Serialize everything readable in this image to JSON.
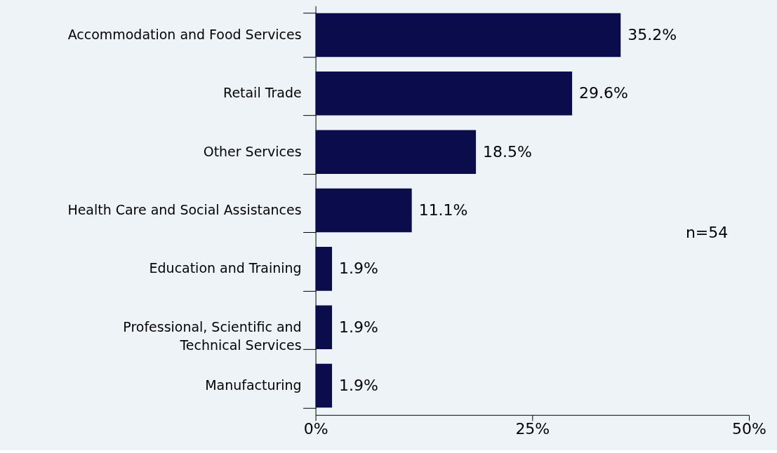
{
  "chart_data": {
    "type": "bar",
    "orientation": "horizontal",
    "categories": [
      "Accommodation and Food Services",
      "Retail Trade",
      "Other Services",
      "Health Care and Social Assistances",
      "Education and Training",
      "Professional, Scientific and Technical Services",
      "Manufacturing"
    ],
    "values": [
      35.2,
      29.6,
      18.5,
      11.1,
      1.9,
      1.9,
      1.9
    ],
    "value_labels": [
      "35.2%",
      "29.6%",
      "18.5%",
      "11.1%",
      "1.9%",
      "1.9%",
      "1.9%"
    ],
    "color": "#0b0c4c",
    "xlim": [
      0,
      50
    ],
    "xticks": [
      {
        "value": 0,
        "label": "0%"
      },
      {
        "value": 25,
        "label": "25%"
      },
      {
        "value": 50,
        "label": "50%"
      }
    ],
    "annotations": [
      "n=54"
    ],
    "grid": false
  }
}
